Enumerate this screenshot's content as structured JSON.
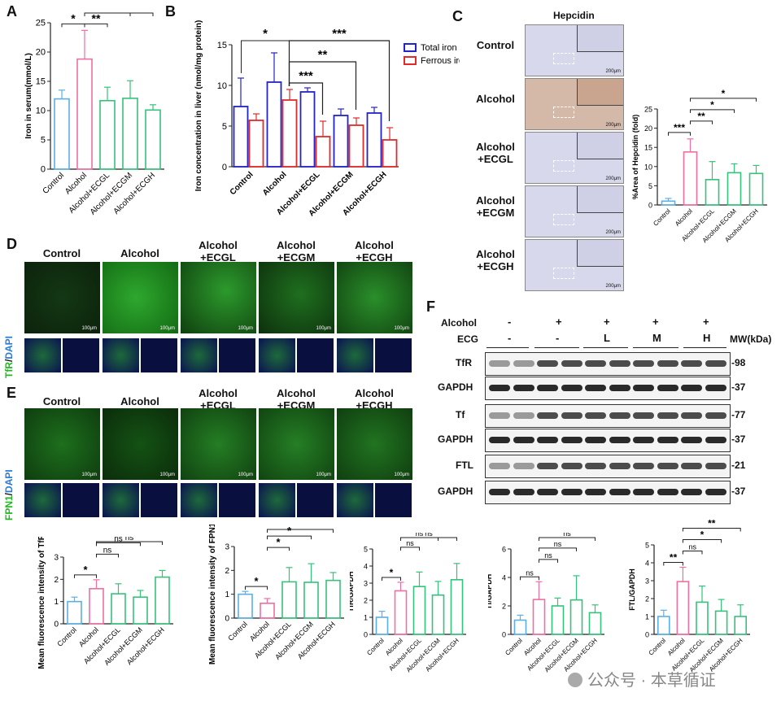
{
  "panel_letters": [
    "A",
    "B",
    "C",
    "D",
    "E",
    "F"
  ],
  "chart_data": [
    {
      "id": "A",
      "type": "bar",
      "ylabel": "Iron in serum(mmol/L)",
      "ylim": [
        0,
        25
      ],
      "yticks": [
        0,
        5,
        10,
        15,
        20,
        25
      ],
      "categories": [
        "Control",
        "Alcohol",
        "Alcohol+ECGL",
        "Alcohol+ECGM",
        "Alcohol+ECGH"
      ],
      "values": [
        12,
        18.8,
        11.7,
        12.1,
        10.1
      ],
      "errors": [
        1.5,
        4.9,
        2.3,
        3.0,
        0.9
      ],
      "colors": [
        "#5ab0e6",
        "#ef6fa0",
        "#35c27a",
        "#35c27a",
        "#35c27a"
      ],
      "sig": [
        "*",
        "**",
        "*",
        "***"
      ]
    },
    {
      "id": "B",
      "type": "bar",
      "ylabel": "Iron concentration in liver (nmol/mg protein)",
      "ylim": [
        0,
        15
      ],
      "yticks": [
        0,
        5,
        10,
        15
      ],
      "categories": [
        "Control",
        "Alcohol",
        "Alcohol+ECGL",
        "Alcohol+ECGM",
        "Alcohol+ECGH"
      ],
      "series": [
        {
          "name": "Total iron",
          "color": "#2323c8",
          "values": [
            7.4,
            10.4,
            9.2,
            6.3,
            6.6
          ],
          "errors": [
            3.5,
            3.6,
            0.5,
            0.8,
            0.7
          ]
        },
        {
          "name": "Ferrous iron",
          "color": "#e02b2b",
          "values": [
            5.7,
            8.2,
            3.7,
            5.1,
            3.3
          ],
          "errors": [
            0.8,
            1.3,
            1.9,
            0.9,
            1.5
          ]
        }
      ],
      "sig": [
        "*",
        "***",
        "**",
        "***"
      ]
    },
    {
      "id": "C",
      "type": "bar",
      "ylabel": "%Area of Hepcidin (fold)",
      "ylim": [
        0,
        25
      ],
      "yticks": [
        0,
        5,
        10,
        15,
        20,
        25
      ],
      "categories": [
        "Control",
        "Alcohol",
        "Alcohol+ECGL",
        "Alcohol+ECGM",
        "Alcohol+ECGH"
      ],
      "values": [
        1.0,
        13.8,
        6.6,
        8.4,
        8.2
      ],
      "errors": [
        0.7,
        3.4,
        4.7,
        2.3,
        2.1
      ],
      "colors": [
        "#5ab0e6",
        "#ef6fa0",
        "#35c27a",
        "#35c27a",
        "#35c27a"
      ],
      "sig": [
        "***",
        "**",
        "*",
        "*"
      ]
    },
    {
      "id": "E1",
      "type": "bar",
      "ylabel": "Mean fluorescence intensity of TfR (fold)",
      "ylim": [
        0,
        3
      ],
      "yticks": [
        0,
        1,
        2,
        3
      ],
      "categories": [
        "Control",
        "Alcohol",
        "Alcohol+ECGL",
        "Alcohol+ECGM",
        "Alcohol+ECGH"
      ],
      "values": [
        1.0,
        1.58,
        1.35,
        1.2,
        2.1
      ],
      "errors": [
        0.2,
        0.4,
        0.45,
        0.3,
        0.3
      ],
      "colors": [
        "#5ab0e6",
        "#ef6fa0",
        "#35c27a",
        "#35c27a",
        "#35c27a"
      ],
      "sig": [
        "*",
        "ns",
        "ns",
        "ns"
      ]
    },
    {
      "id": "E2",
      "type": "bar",
      "ylabel": "Mean fluorescence intensity of FPN1 (fold)",
      "ylim": [
        0,
        3
      ],
      "yticks": [
        0,
        1,
        2,
        3
      ],
      "categories": [
        "Control",
        "Alcohol",
        "Alcohol+ECGL",
        "Alcohol+ECGM",
        "Alcohol+ECGH"
      ],
      "values": [
        1.0,
        0.62,
        1.52,
        1.5,
        1.58
      ],
      "errors": [
        0.12,
        0.2,
        0.6,
        0.78,
        0.33
      ],
      "colors": [
        "#5ab0e6",
        "#ef6fa0",
        "#35c27a",
        "#35c27a",
        "#35c27a"
      ],
      "sig": [
        "*",
        "*",
        "*",
        "*"
      ]
    },
    {
      "id": "F1",
      "type": "bar",
      "ylabel": "TfR/GAPDH",
      "ylim": [
        0,
        5
      ],
      "yticks": [
        0,
        1,
        2,
        3,
        4,
        5
      ],
      "categories": [
        "Control",
        "Alcohol",
        "Alcohol+ECGL",
        "Alcohol+ECGM",
        "Alcohol+ECGH"
      ],
      "values": [
        1.0,
        2.55,
        2.8,
        2.3,
        3.2
      ],
      "errors": [
        0.35,
        0.5,
        0.85,
        0.8,
        0.95
      ],
      "colors": [
        "#5ab0e6",
        "#ef6fa0",
        "#35c27a",
        "#35c27a",
        "#35c27a"
      ],
      "sig": [
        "*",
        "ns",
        "ns",
        "ns"
      ]
    },
    {
      "id": "F2",
      "type": "bar",
      "ylabel": "Tf/GAPDH",
      "ylim": [
        0,
        6
      ],
      "yticks": [
        0,
        2,
        4,
        6
      ],
      "categories": [
        "Control",
        "Alcohol",
        "Alcohol+ECGL",
        "Alcohol+ECGM",
        "Alcohol+ECGH"
      ],
      "values": [
        1.0,
        2.45,
        2.0,
        2.42,
        1.52
      ],
      "errors": [
        0.35,
        1.25,
        0.55,
        1.7,
        0.55
      ],
      "colors": [
        "#5ab0e6",
        "#ef6fa0",
        "#35c27a",
        "#35c27a",
        "#35c27a"
      ],
      "sig": [
        "ns",
        "ns",
        "ns",
        "ns"
      ]
    },
    {
      "id": "F3",
      "type": "bar",
      "ylabel": "FTL/GAPDH",
      "ylim": [
        0,
        5
      ],
      "yticks": [
        0,
        1,
        2,
        3,
        4,
        5
      ],
      "categories": [
        "Control",
        "Alcohol",
        "Alcohol+ECGL",
        "Alcohol+ECGM",
        "Alcohol+ECGH"
      ],
      "values": [
        1.0,
        2.95,
        1.8,
        1.3,
        1.0
      ],
      "errors": [
        0.35,
        0.8,
        0.9,
        0.65,
        0.65
      ],
      "colors": [
        "#5ab0e6",
        "#ef6fa0",
        "#35c27a",
        "#35c27a",
        "#35c27a"
      ],
      "sig": [
        "**",
        "ns",
        "*",
        "**"
      ]
    }
  ],
  "panel_c": {
    "title": "Hepcidin",
    "rows": [
      "Control",
      "Alcohol",
      "Alcohol\n+ECGL",
      "Alcohol\n+ECGM",
      "Alcohol\n+ECGH"
    ],
    "scale": "200μm"
  },
  "panel_d": {
    "columns": [
      "Control",
      "Alcohol",
      "Alcohol\n+ECGL",
      "Alcohol\n+ECGM",
      "Alcohol\n+ECGH"
    ],
    "stain_a": "TfR",
    "stain_sep": "/",
    "stain_b": "DAPI",
    "scale": "100μm"
  },
  "panel_e": {
    "columns": [
      "Control",
      "Alcohol",
      "Alcohol\n+ECGL",
      "Alcohol\n+ECGM",
      "Alcohol\n+ECGH"
    ],
    "stain_a": "FPN1",
    "stain_sep": "/",
    "stain_b": "DAPI",
    "scale": "100μm"
  },
  "western": {
    "alcohol_label": "Alcohol",
    "ecg_label": "ECG",
    "mw_label": "MW(kDa)",
    "alcohol_row": [
      "-",
      "+",
      "+",
      "+",
      "+"
    ],
    "ecg_row": [
      "-",
      "-",
      "L",
      "M",
      "H"
    ],
    "blots": [
      {
        "name": "TfR",
        "mw": "98"
      },
      {
        "name": "GAPDH",
        "mw": "37"
      },
      {
        "name": "Tf",
        "mw": "77"
      },
      {
        "name": "GAPDH",
        "mw": "37"
      },
      {
        "name": "FTL",
        "mw": "21"
      },
      {
        "name": "GAPDH",
        "mw": "37"
      }
    ]
  },
  "watermark": "公众号 · 本草循证"
}
